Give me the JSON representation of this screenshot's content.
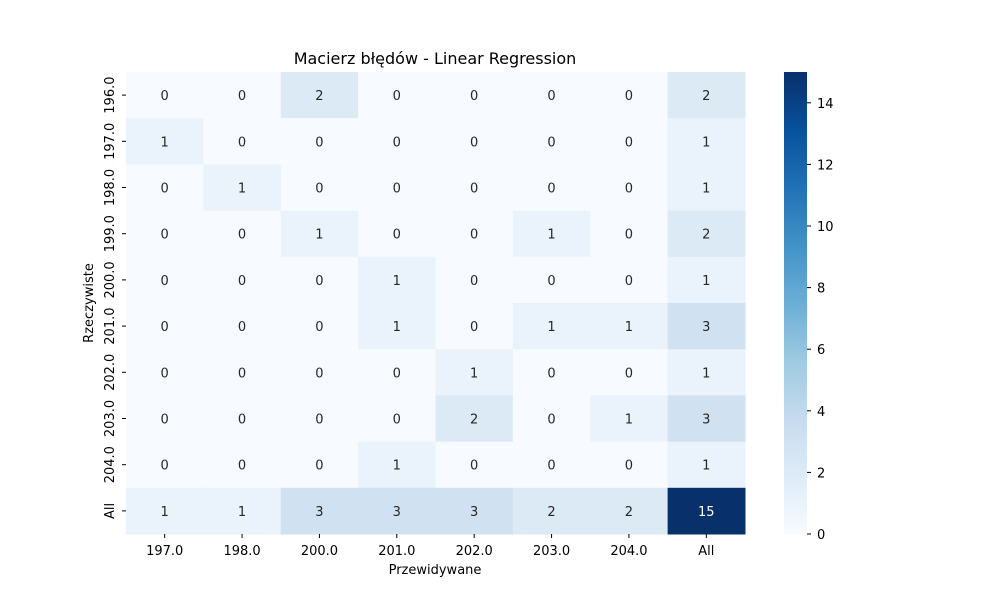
{
  "chart_data": {
    "type": "heatmap",
    "title": "Macierz błędów - Linear Regression",
    "xlabel": "Przewidywane",
    "ylabel": "Rzeczywiste",
    "x_categories": [
      "197.0",
      "198.0",
      "200.0",
      "201.0",
      "202.0",
      "203.0",
      "204.0",
      "All"
    ],
    "y_categories": [
      "196.0",
      "197.0",
      "198.0",
      "199.0",
      "200.0",
      "201.0",
      "202.0",
      "203.0",
      "204.0",
      "All"
    ],
    "values": [
      [
        0,
        0,
        2,
        0,
        0,
        0,
        0,
        2
      ],
      [
        1,
        0,
        0,
        0,
        0,
        0,
        0,
        1
      ],
      [
        0,
        1,
        0,
        0,
        0,
        0,
        0,
        1
      ],
      [
        0,
        0,
        1,
        0,
        0,
        1,
        0,
        2
      ],
      [
        0,
        0,
        0,
        1,
        0,
        0,
        0,
        1
      ],
      [
        0,
        0,
        0,
        1,
        0,
        1,
        1,
        3
      ],
      [
        0,
        0,
        0,
        0,
        1,
        0,
        0,
        1
      ],
      [
        0,
        0,
        0,
        0,
        2,
        0,
        1,
        3
      ],
      [
        0,
        0,
        0,
        1,
        0,
        0,
        0,
        1
      ],
      [
        1,
        1,
        3,
        3,
        3,
        2,
        2,
        15
      ]
    ],
    "colormap": "Blues",
    "vmin": 0,
    "vmax": 15,
    "colorbar_ticks": [
      0,
      2,
      4,
      6,
      8,
      10,
      12,
      14
    ],
    "colorbar_position": "right"
  }
}
